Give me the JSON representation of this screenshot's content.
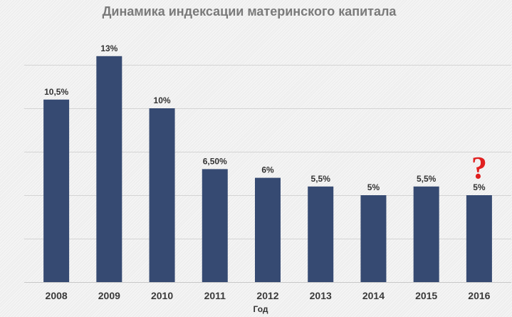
{
  "chart_data": {
    "type": "bar",
    "title": "Динамика индексации материнского капитала",
    "xlabel": "Год",
    "ylabel": "",
    "categories": [
      "2008",
      "2009",
      "2010",
      "2011",
      "2012",
      "2013",
      "2014",
      "2015",
      "2016"
    ],
    "values": [
      10.5,
      13,
      10,
      6.5,
      6,
      5.5,
      5,
      5.5,
      5
    ],
    "data_labels": [
      "10,5%",
      "13%",
      "10%",
      "6,50%",
      "6%",
      "5,5%",
      "5%",
      "5,5%",
      "5%"
    ],
    "ylim": [
      0,
      15
    ],
    "y_axis_visible": false,
    "grid": true,
    "legend": "none",
    "annotation": {
      "text": "?",
      "category": "2016",
      "color": "#e02020"
    },
    "colors": {
      "bar": "#364a72",
      "background": "#eeeeee"
    }
  }
}
